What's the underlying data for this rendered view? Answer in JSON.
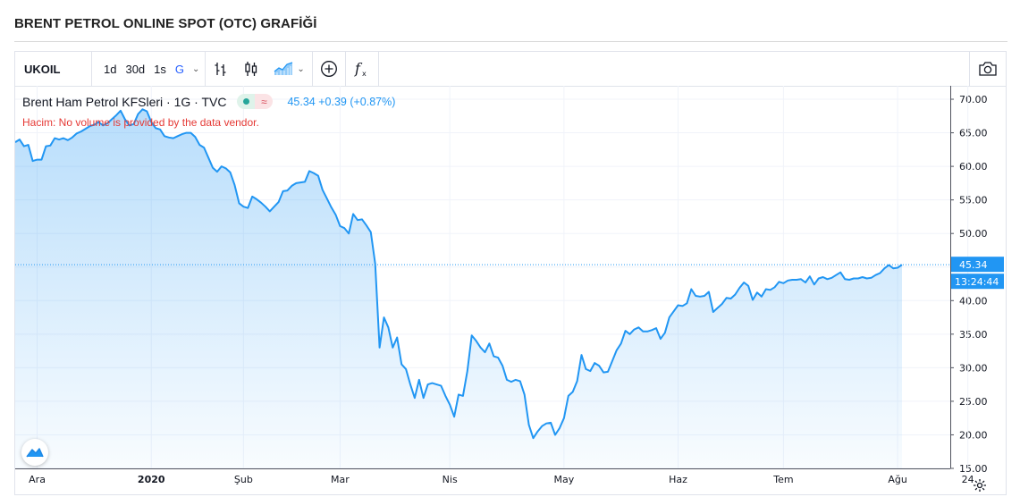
{
  "page_title": "BRENT PETROL ONLINE SPOT (OTC) GRAFİĞİ",
  "toolbar": {
    "symbol": "UKOIL",
    "intervals": [
      "1d",
      "30d",
      "1s",
      "G"
    ],
    "active_interval": "G",
    "icons": [
      "bar-chart-icon",
      "candlestick-icon",
      "area-chart-icon",
      "add-indicator-icon",
      "function-icon",
      "camera-icon"
    ]
  },
  "legend": {
    "name": "Brent Ham Petrol KFSleri · 1G · TVC",
    "price_text": "45.34  +0.39 (+0.87%)",
    "volume_note": "Hacim: No volume is provided by the data vendor."
  },
  "axis": {
    "last_price_label": "45.34",
    "countdown_label": "13:24:44"
  },
  "colors": {
    "line": "#2196f3",
    "area_top": "#2196f3",
    "last_price": "#2196f3",
    "negative": "#e53935"
  },
  "chart_data": {
    "type": "area",
    "title": "BRENT PETROL ONLINE SPOT (OTC) GRAFİĞİ",
    "xlabel": "",
    "ylabel": "",
    "ylim": [
      15,
      72
    ],
    "y_ticks": [
      15,
      20,
      25,
      30,
      35,
      40,
      45,
      50,
      55,
      60,
      65,
      70
    ],
    "y_tick_labels": [
      "15.00",
      "20.00",
      "25.00",
      "30.00",
      "35.00",
      "40.00",
      "45.00",
      "50.00",
      "55.00",
      "60.00",
      "65.00",
      "70.00"
    ],
    "x_tick_labels": [
      "Ara",
      "2020",
      "Şub",
      "Mar",
      "Nis",
      "May",
      "Haz",
      "Tem",
      "Ağu",
      "24"
    ],
    "x_tick_index": [
      5,
      31,
      52,
      74,
      99,
      125,
      151,
      175,
      201,
      217
    ],
    "grid": true,
    "last_value": 45.34,
    "series": [
      {
        "name": "",
        "values": [
          63.6,
          64,
          63,
          63.2,
          60.8,
          61,
          61,
          63,
          63.1,
          64.2,
          64,
          64.2,
          63.9,
          64.3,
          64.9,
          65.2,
          65.6,
          66,
          66.2,
          66.6,
          66.1,
          66.4,
          67,
          67.6,
          68.3,
          67,
          66.1,
          66.3,
          67.8,
          68.5,
          68.2,
          66.6,
          65.7,
          65.5,
          64.5,
          64.3,
          64.2,
          64.5,
          64.8,
          65,
          65,
          64.4,
          63.2,
          62.8,
          61.3,
          59.8,
          59.2,
          60,
          59.7,
          59.1,
          57.2,
          54.5,
          54,
          53.8,
          55.5,
          55.1,
          54.6,
          54,
          53.3,
          54,
          54.7,
          56.3,
          56.4,
          57.1,
          57.5,
          57.6,
          57.7,
          59.3,
          59,
          58.6,
          56.5,
          55.2,
          53.9,
          52.8,
          51.1,
          50.8,
          50,
          52.9,
          52,
          52.1,
          51.2,
          50.2,
          45.5,
          33,
          37.5,
          36,
          33,
          34.5,
          30.5,
          29.8,
          27.5,
          25.5,
          28.2,
          25.5,
          27.5,
          27.7,
          27.5,
          27.3,
          25.8,
          24.5,
          22.7,
          26,
          25.8,
          29.5,
          34.8,
          34,
          33,
          32.3,
          33.6,
          31.7,
          31.5,
          30.3,
          28.2,
          27.9,
          28.2,
          28,
          26,
          21.5,
          19.5,
          20.5,
          21.3,
          21.7,
          21.8,
          20,
          21,
          22.5,
          25.8,
          26.4,
          28,
          31.9,
          29.8,
          29.5,
          30.7,
          30.3,
          29.3,
          29.4,
          31,
          32.6,
          33.6,
          35.5,
          35,
          35.7,
          36,
          35.4,
          35.4,
          35.6,
          35.9,
          34.3,
          35.2,
          37.5,
          38.4,
          39.3,
          39.2,
          39.6,
          41.7,
          40.7,
          40.6,
          40.7,
          41.3,
          38.3,
          38.9,
          39.5,
          40.4,
          40.3,
          40.9,
          41.9,
          42.7,
          42.2,
          40.1,
          41.2,
          40.6,
          41.7,
          41.6,
          42,
          42.8,
          42.6,
          43,
          43.1,
          43.1,
          43.2,
          42.7,
          43.6,
          42.4,
          43.3,
          43.5,
          43.2,
          43.4,
          43.8,
          44.2,
          43.2,
          43.1,
          43.3,
          43.3,
          43.5,
          43.3,
          43.4,
          43.8,
          44.1,
          44.8,
          45.3,
          44.8,
          44.9,
          45.34
        ]
      }
    ]
  }
}
